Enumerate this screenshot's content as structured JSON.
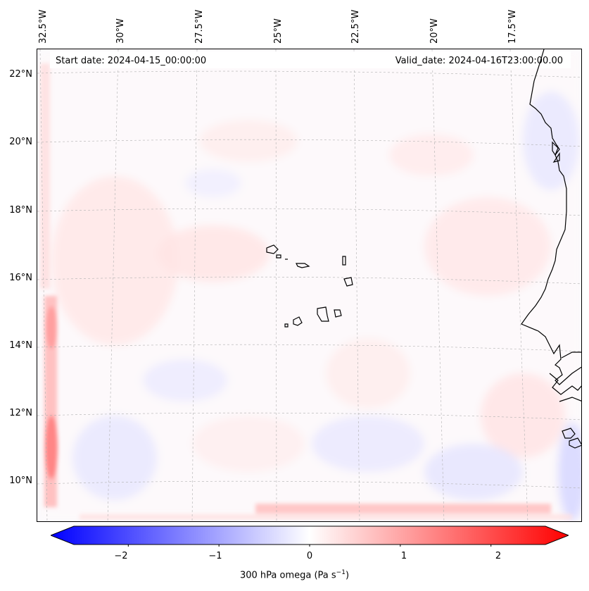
{
  "map": {
    "start_date": "Start date: 2024-04-15_00:00:00",
    "valid_date": "Valid_date: 2024-04-16T23:00:00.00",
    "lon_labels": [
      "32.5°W",
      "30°W",
      "27.5°W",
      "25°W",
      "22.5°W",
      "20°W",
      "17.5°W"
    ],
    "lat_labels": [
      "22°N",
      "20°N",
      "18°N",
      "16°N",
      "14°N",
      "12°N",
      "10°N"
    ],
    "extent": {
      "lon_min": -32.6,
      "lon_max": -15.1,
      "lat_min": 8.9,
      "lat_max": 22.8
    }
  },
  "colorbar": {
    "ticks": [
      "−2",
      "−1",
      "0",
      "1",
      "2"
    ],
    "tick_values": [
      -2,
      -1,
      0,
      1,
      2
    ],
    "range": [
      -2.6,
      2.6
    ],
    "label_pre": "300 hPa omega (Pa s",
    "label_sup": "−1",
    "label_post": ")",
    "color_min": "#0000ff",
    "color_mid": "#ffffff",
    "color_max": "#ff0000"
  },
  "colors": {
    "coastline": "#000000",
    "gridline": "#b0b0b0"
  }
}
